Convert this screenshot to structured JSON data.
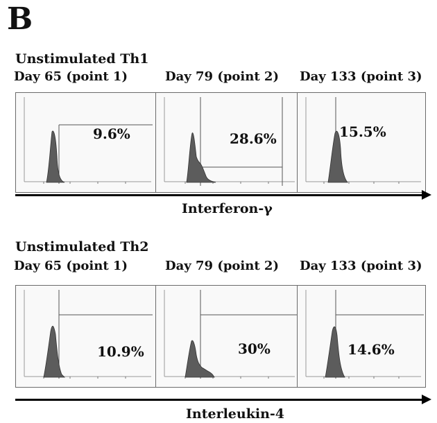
{
  "panel_label": "B",
  "chart_data": [
    {
      "type": "histogram",
      "title": "Unstimulated Th1",
      "xlabel": "Interferon-γ",
      "plots": [
        {
          "label": "Day 65 (point 1)",
          "gate_percent": "9.6%"
        },
        {
          "label": "Day 79 (point 2)",
          "gate_percent": "28.6%"
        },
        {
          "label": "Day 133 (point 3)",
          "gate_percent": "15.5%"
        }
      ]
    },
    {
      "type": "histogram",
      "title": "Unstimulated Th2",
      "xlabel": "Interleukin-4",
      "plots": [
        {
          "label": "Day 65 (point 1)",
          "gate_percent": "10.9%"
        },
        {
          "label": "Day 79 (point 2)",
          "gate_percent": "30%"
        },
        {
          "label": "Day 133 (point 3)",
          "gate_percent": "14.6%"
        }
      ]
    }
  ]
}
